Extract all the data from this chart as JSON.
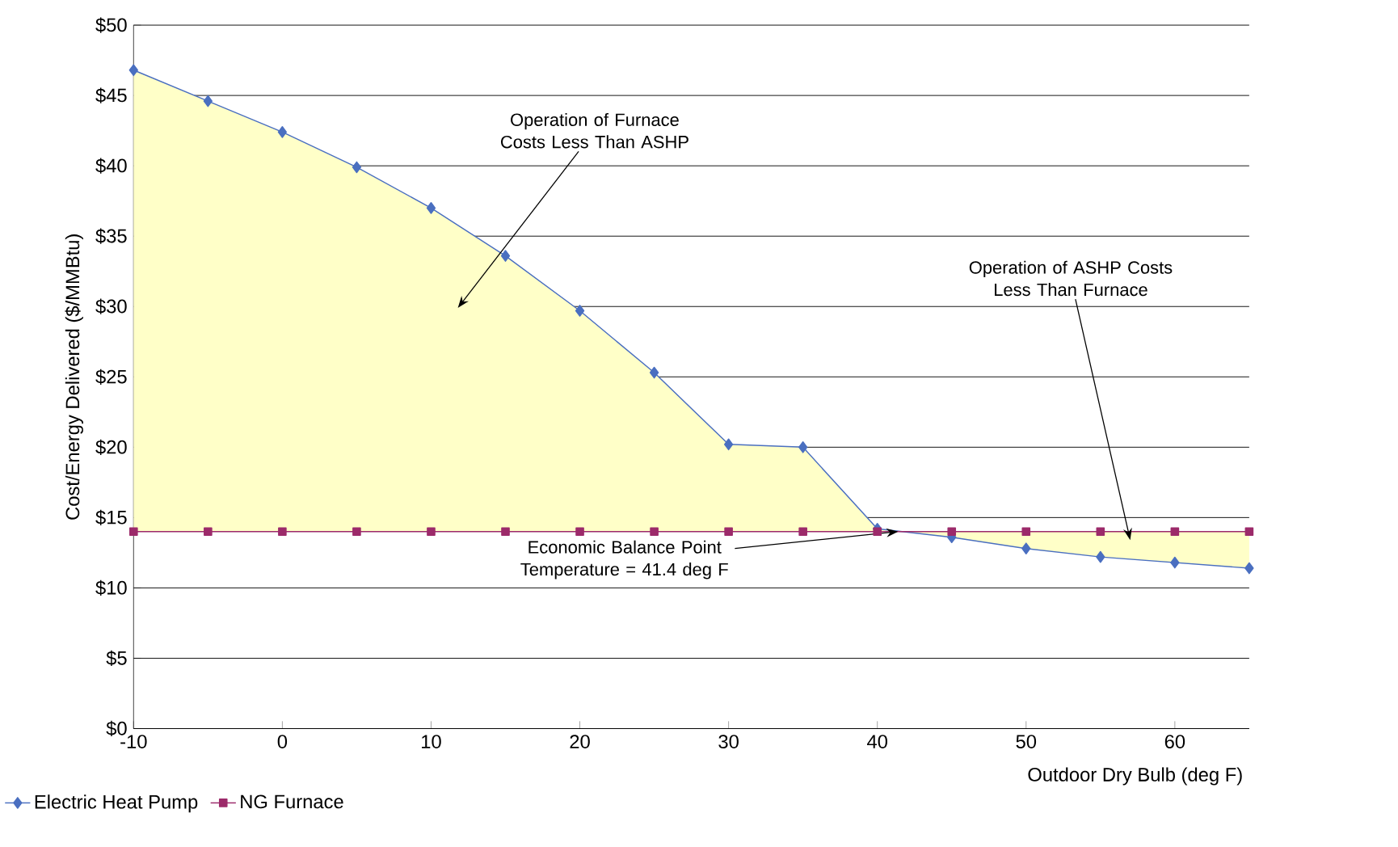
{
  "chart_data": {
    "type": "line",
    "xlabel": "Outdoor Dry Bulb (deg F)",
    "ylabel": "Cost/Energy Delivered ($/MMBtu)",
    "x": [
      -10,
      -5,
      0,
      5,
      10,
      15,
      20,
      25,
      30,
      35,
      40,
      45,
      50,
      55,
      60,
      65
    ],
    "series": [
      {
        "name": "Electric Heat Pump",
        "color": "#4a6fc0",
        "marker": "diamond",
        "values": [
          46.8,
          44.6,
          42.4,
          39.9,
          37.0,
          33.6,
          29.7,
          25.3,
          20.2,
          20.0,
          14.2,
          13.6,
          12.8,
          12.2,
          11.8,
          11.4
        ]
      },
      {
        "name": "NG Furnace",
        "color": "#9c2a6a",
        "marker": "square",
        "values": [
          14,
          14,
          14,
          14,
          14,
          14,
          14,
          14,
          14,
          14,
          14,
          14,
          14,
          14,
          14,
          14
        ]
      }
    ],
    "xlim": [
      -10,
      65
    ],
    "xticks": [
      -10,
      0,
      10,
      20,
      30,
      40,
      50,
      60
    ],
    "ylim": [
      0,
      50
    ],
    "yticks": [
      {
        "value": 0,
        "label": "$0"
      },
      {
        "value": 5,
        "label": "$5"
      },
      {
        "value": 10,
        "label": "$10"
      },
      {
        "value": 15,
        "label": "$15"
      },
      {
        "value": 20,
        "label": "$20"
      },
      {
        "value": 25,
        "label": "$25"
      },
      {
        "value": 30,
        "label": "$30"
      },
      {
        "value": 35,
        "label": "$35"
      },
      {
        "value": 40,
        "label": "$40"
      },
      {
        "value": 45,
        "label": "$45"
      },
      {
        "value": 50,
        "label": "$50"
      }
    ],
    "grid": "y",
    "legend": "bottom left",
    "annotations": [
      "Operation of Furnace Costs Less Than ASHP",
      "Operation of ASHP Costs Less Than Furnace",
      {
        "text": "Economic Balance Point Temperature = 41.4 deg F",
        "x": 41.4,
        "y": 14
      }
    ]
  }
}
